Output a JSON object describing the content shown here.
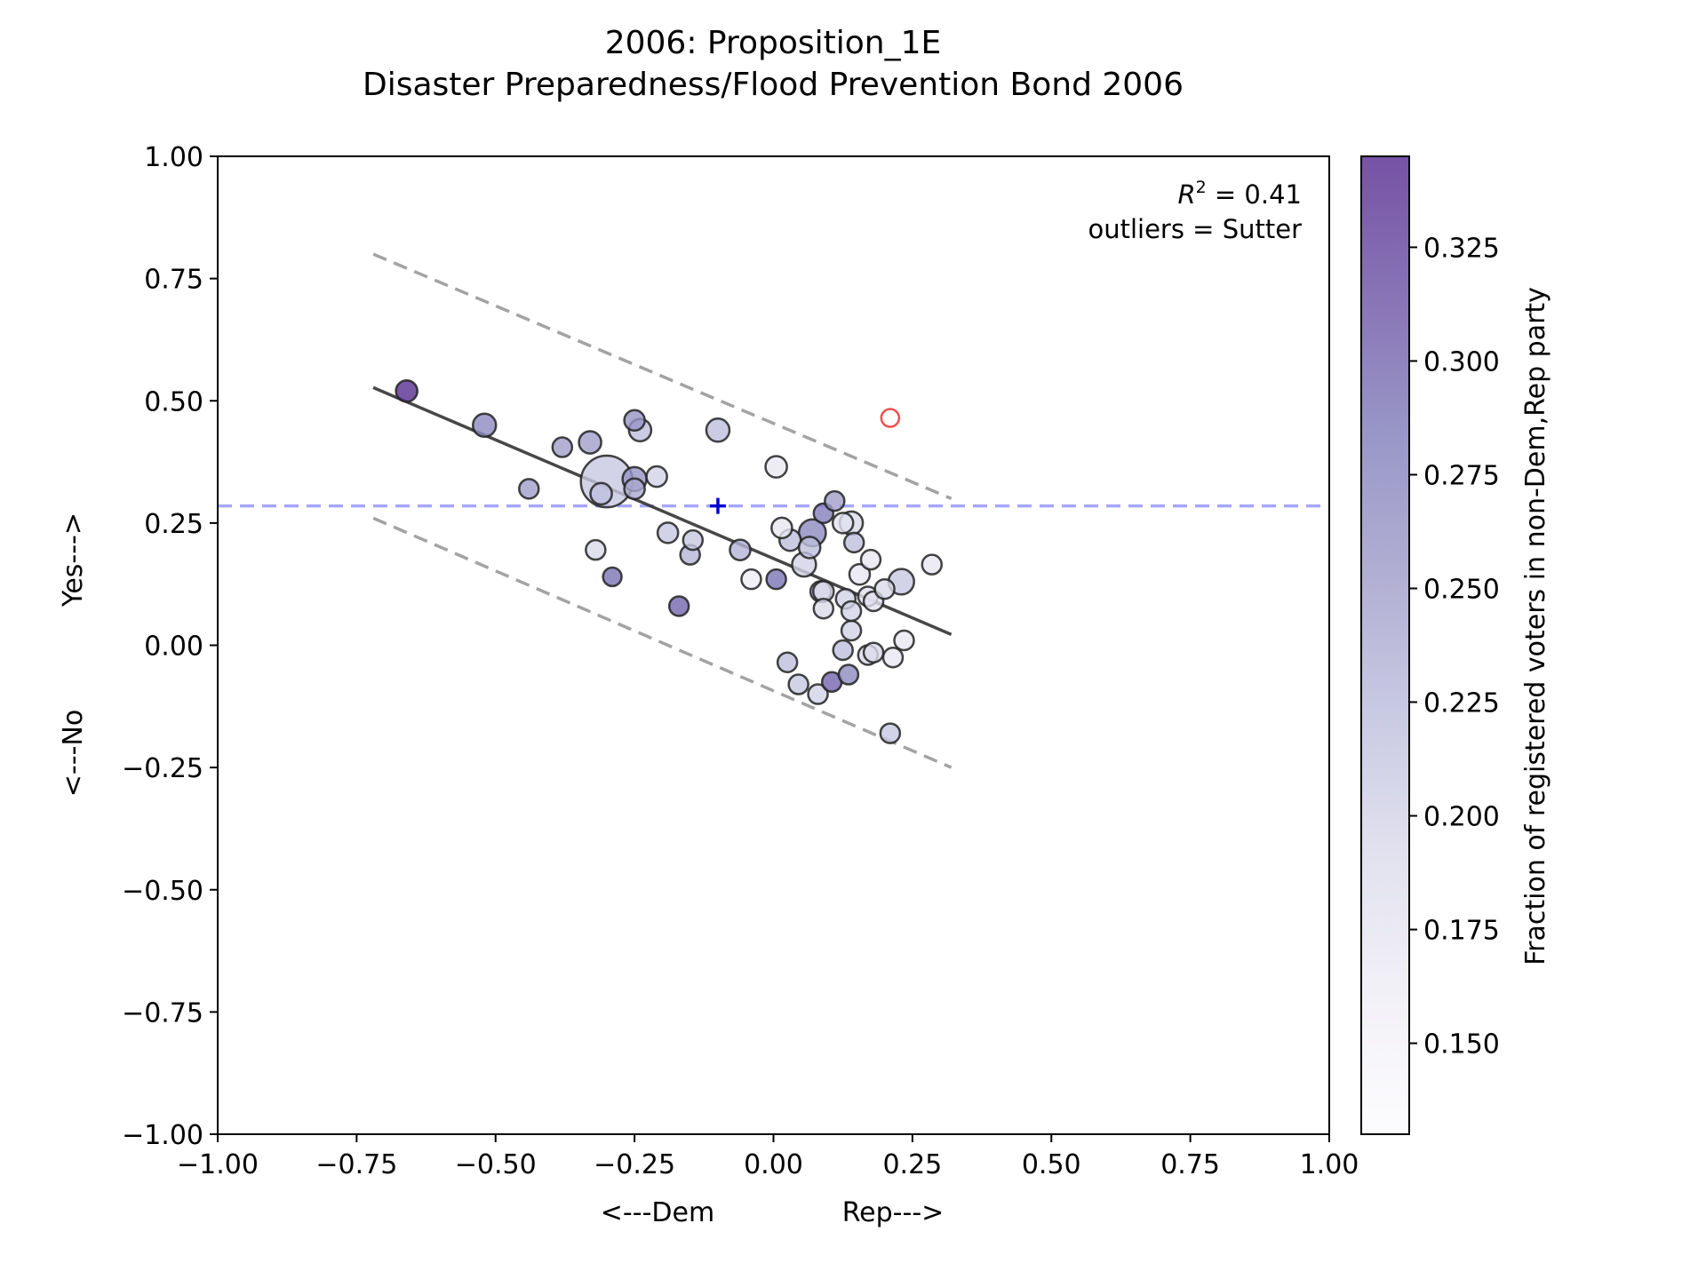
{
  "chart_data": {
    "type": "scatter",
    "title_lines": [
      "2006: Proposition_1E",
      "Disaster Preparedness/Flood Prevention Bond 2006"
    ],
    "xlabel_left": "<---Dem",
    "xlabel_right": "Rep--->",
    "ylabel_bottom": "<---No",
    "ylabel_top": "Yes--->",
    "xlim": [
      -1.0,
      1.0
    ],
    "ylim": [
      -1.0,
      1.0
    ],
    "xticks": [
      "−1.00",
      "−0.75",
      "−0.50",
      "−0.25",
      "0.00",
      "0.25",
      "0.50",
      "0.75",
      "1.00"
    ],
    "yticks": [
      "−1.00",
      "−0.75",
      "−0.50",
      "−0.25",
      "0.00",
      "0.25",
      "0.50",
      "0.75",
      "1.00"
    ],
    "annotation_r2_symbol": "R",
    "annotation_r2_sup": "2",
    "annotation_r2_value": " = 0.41",
    "annotation_outliers": "outliers = Sutter",
    "colorbar": {
      "label": "Fraction of registered voters in non-Dem,Rep party",
      "min": 0.13,
      "max": 0.345,
      "ticks": [
        "0.150",
        "0.175",
        "0.200",
        "0.225",
        "0.250",
        "0.275",
        "0.300",
        "0.325"
      ],
      "colors": [
        "#fcfbfd",
        "#efedf5",
        "#dadaeb",
        "#bcbddc",
        "#9e9ac8",
        "#807dba",
        "#6a51a3",
        "#54278f"
      ]
    },
    "reference_line_y": 0.285,
    "reference_line_color": "#0000ff",
    "mean_marker": {
      "x": -0.1,
      "y": 0.285,
      "color": "#0000cc"
    },
    "fit_line": {
      "x": [
        -0.72,
        0.32
      ],
      "y": [
        0.527,
        0.022
      ]
    },
    "upper_band": {
      "x": [
        -0.72,
        0.32
      ],
      "y": [
        0.8,
        0.3
      ]
    },
    "lower_band": {
      "x": [
        -0.72,
        0.32
      ],
      "y": [
        0.26,
        -0.25
      ]
    },
    "outlier_points": [
      {
        "x": 0.21,
        "y": 0.465,
        "color": "#ee2222"
      }
    ],
    "points": [
      {
        "x": -0.66,
        "y": 0.52,
        "c": 0.34,
        "s": 1.2
      },
      {
        "x": -0.52,
        "y": 0.45,
        "c": 0.27,
        "s": 1.4
      },
      {
        "x": -0.44,
        "y": 0.32,
        "c": 0.25,
        "s": 1.0
      },
      {
        "x": -0.38,
        "y": 0.405,
        "c": 0.25,
        "s": 1.0
      },
      {
        "x": -0.33,
        "y": 0.415,
        "c": 0.25,
        "s": 1.3
      },
      {
        "x": -0.3,
        "y": 0.335,
        "c": 0.21,
        "s": 7.0
      },
      {
        "x": -0.32,
        "y": 0.195,
        "c": 0.19,
        "s": 1.0
      },
      {
        "x": -0.31,
        "y": 0.31,
        "c": 0.22,
        "s": 1.2
      },
      {
        "x": -0.29,
        "y": 0.14,
        "c": 0.29,
        "s": 0.9
      },
      {
        "x": -0.25,
        "y": 0.46,
        "c": 0.26,
        "s": 1.1
      },
      {
        "x": -0.24,
        "y": 0.44,
        "c": 0.22,
        "s": 1.3
      },
      {
        "x": -0.25,
        "y": 0.34,
        "c": 0.26,
        "s": 1.5
      },
      {
        "x": -0.25,
        "y": 0.32,
        "c": 0.24,
        "s": 1.1
      },
      {
        "x": -0.21,
        "y": 0.345,
        "c": 0.2,
        "s": 1.1
      },
      {
        "x": -0.19,
        "y": 0.23,
        "c": 0.21,
        "s": 1.1
      },
      {
        "x": -0.17,
        "y": 0.08,
        "c": 0.3,
        "s": 1.0
      },
      {
        "x": -0.15,
        "y": 0.185,
        "c": 0.23,
        "s": 1.0
      },
      {
        "x": -0.145,
        "y": 0.215,
        "c": 0.21,
        "s": 1.0
      },
      {
        "x": -0.1,
        "y": 0.44,
        "c": 0.22,
        "s": 1.4
      },
      {
        "x": -0.06,
        "y": 0.195,
        "c": 0.23,
        "s": 1.1
      },
      {
        "x": -0.04,
        "y": 0.135,
        "c": 0.16,
        "s": 1.0
      },
      {
        "x": 0.005,
        "y": 0.365,
        "c": 0.17,
        "s": 1.2
      },
      {
        "x": 0.005,
        "y": 0.135,
        "c": 0.29,
        "s": 1.0
      },
      {
        "x": 0.015,
        "y": 0.24,
        "c": 0.17,
        "s": 1.1
      },
      {
        "x": 0.025,
        "y": -0.035,
        "c": 0.22,
        "s": 1.0
      },
      {
        "x": 0.03,
        "y": 0.215,
        "c": 0.22,
        "s": 1.2
      },
      {
        "x": 0.045,
        "y": -0.08,
        "c": 0.21,
        "s": 1.0
      },
      {
        "x": 0.055,
        "y": 0.165,
        "c": 0.2,
        "s": 1.5
      },
      {
        "x": 0.065,
        "y": 0.2,
        "c": 0.22,
        "s": 1.2
      },
      {
        "x": 0.07,
        "y": 0.23,
        "c": 0.27,
        "s": 1.9
      },
      {
        "x": 0.08,
        "y": -0.1,
        "c": 0.2,
        "s": 1.0
      },
      {
        "x": 0.085,
        "y": 0.11,
        "c": 0.22,
        "s": 1.1
      },
      {
        "x": 0.09,
        "y": 0.075,
        "c": 0.19,
        "s": 1.0
      },
      {
        "x": 0.09,
        "y": 0.11,
        "c": 0.19,
        "s": 1.1
      },
      {
        "x": 0.09,
        "y": 0.27,
        "c": 0.28,
        "s": 1.0
      },
      {
        "x": 0.105,
        "y": -0.075,
        "c": 0.3,
        "s": 1.0
      },
      {
        "x": 0.11,
        "y": 0.295,
        "c": 0.25,
        "s": 1.0
      },
      {
        "x": 0.125,
        "y": -0.01,
        "c": 0.22,
        "s": 1.0
      },
      {
        "x": 0.125,
        "y": 0.25,
        "c": 0.18,
        "s": 1.1
      },
      {
        "x": 0.13,
        "y": 0.095,
        "c": 0.2,
        "s": 1.0
      },
      {
        "x": 0.135,
        "y": -0.06,
        "c": 0.27,
        "s": 1.0
      },
      {
        "x": 0.14,
        "y": 0.25,
        "c": 0.19,
        "s": 1.4
      },
      {
        "x": 0.14,
        "y": 0.03,
        "c": 0.2,
        "s": 1.0
      },
      {
        "x": 0.14,
        "y": 0.07,
        "c": 0.2,
        "s": 1.0
      },
      {
        "x": 0.145,
        "y": 0.21,
        "c": 0.22,
        "s": 1.0
      },
      {
        "x": 0.155,
        "y": 0.145,
        "c": 0.17,
        "s": 1.1
      },
      {
        "x": 0.17,
        "y": 0.1,
        "c": 0.18,
        "s": 1.0
      },
      {
        "x": 0.17,
        "y": -0.02,
        "c": 0.19,
        "s": 1.0
      },
      {
        "x": 0.175,
        "y": 0.175,
        "c": 0.17,
        "s": 1.0
      },
      {
        "x": 0.18,
        "y": 0.09,
        "c": 0.18,
        "s": 1.0
      },
      {
        "x": 0.18,
        "y": -0.015,
        "c": 0.19,
        "s": 1.0
      },
      {
        "x": 0.2,
        "y": 0.115,
        "c": 0.19,
        "s": 1.0
      },
      {
        "x": 0.21,
        "y": -0.18,
        "c": 0.21,
        "s": 1.0
      },
      {
        "x": 0.215,
        "y": -0.025,
        "c": 0.17,
        "s": 1.0
      },
      {
        "x": 0.23,
        "y": 0.13,
        "c": 0.21,
        "s": 1.7
      },
      {
        "x": 0.235,
        "y": 0.01,
        "c": 0.17,
        "s": 1.0
      },
      {
        "x": 0.285,
        "y": 0.165,
        "c": 0.17,
        "s": 1.0
      }
    ]
  }
}
